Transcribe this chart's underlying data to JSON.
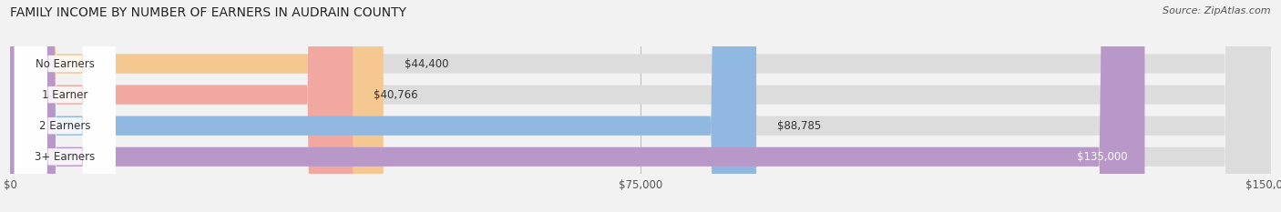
{
  "title": "FAMILY INCOME BY NUMBER OF EARNERS IN AUDRAIN COUNTY",
  "source": "Source: ZipAtlas.com",
  "categories": [
    "No Earners",
    "1 Earner",
    "2 Earners",
    "3+ Earners"
  ],
  "values": [
    44400,
    40766,
    88785,
    135000
  ],
  "bar_colors": [
    "#f5c891",
    "#f0a8a0",
    "#91b8e0",
    "#b898c8"
  ],
  "label_colors": [
    "#555555",
    "#555555",
    "#555555",
    "#ffffff"
  ],
  "value_labels": [
    "$44,400",
    "$40,766",
    "$88,785",
    "$135,000"
  ],
  "xlim_max": 150000,
  "xticks": [
    0,
    75000,
    150000
  ],
  "xtick_labels": [
    "$0",
    "$75,000",
    "$150,000"
  ],
  "fig_bg_color": "#f2f2f2",
  "bar_bg_full_color": "#dcdcdc",
  "title_fontsize": 10,
  "source_fontsize": 8
}
